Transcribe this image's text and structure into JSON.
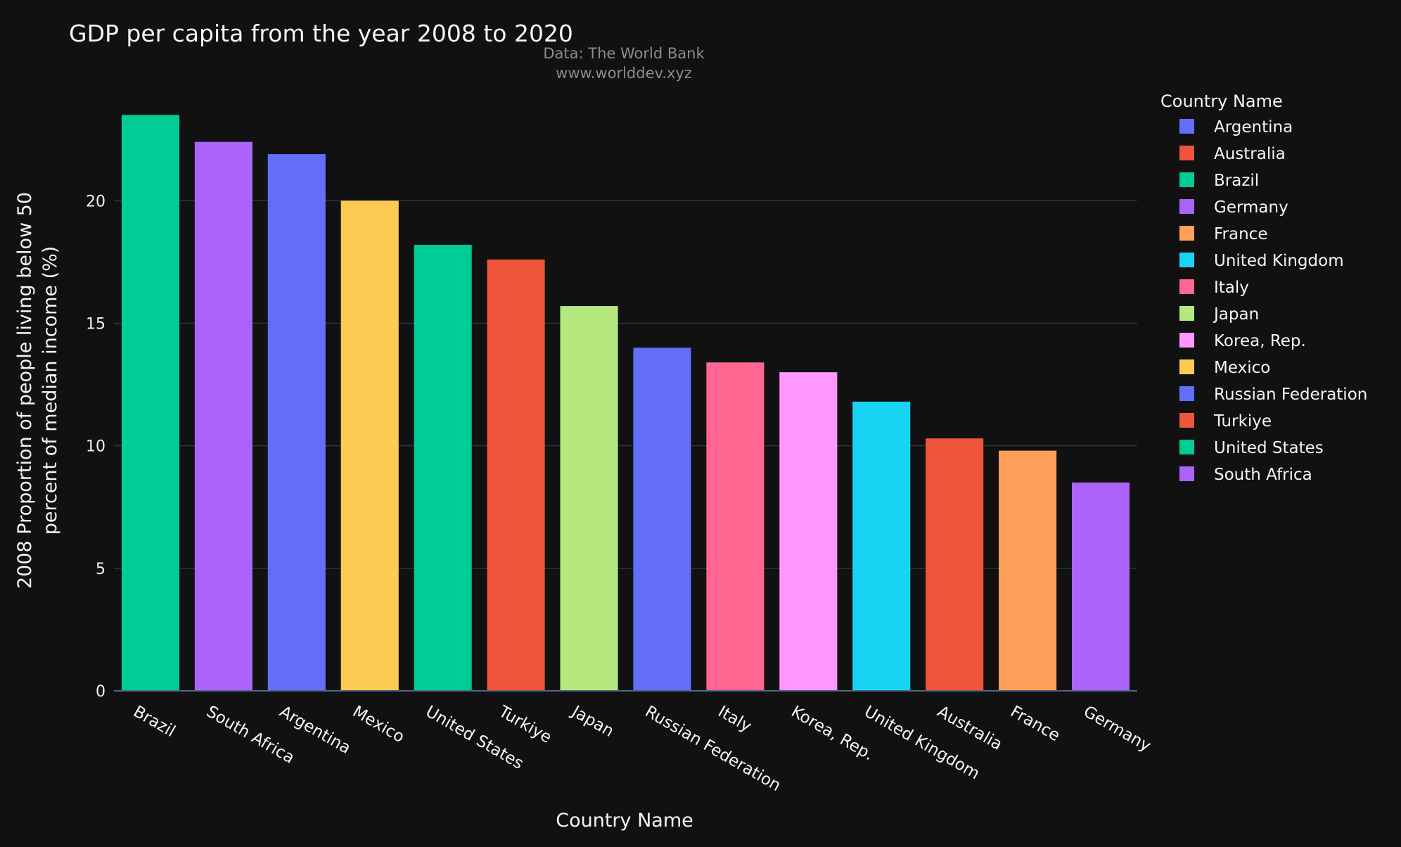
{
  "chart_data": {
    "type": "bar",
    "title": "GDP per capita from the year 2008 to 2020",
    "subtitle_lines": [
      "Data: The World Bank",
      "www.worlddev.xyz"
    ],
    "xlabel": "Country Name",
    "ylabel_lines": [
      "2008 Proportion of people living below 50",
      "percent of median income (%)"
    ],
    "ylim": [
      0,
      24.4
    ],
    "yticks": [
      0,
      5,
      10,
      15,
      20
    ],
    "grid": true,
    "legend_title": "Country Name",
    "legend_position": "right",
    "categories": [
      "Brazil",
      "South Africa",
      "Argentina",
      "Mexico",
      "United States",
      "Turkiye",
      "Japan",
      "Russian Federation",
      "Italy",
      "Korea, Rep.",
      "United Kingdom",
      "Australia",
      "France",
      "Germany"
    ],
    "values": [
      23.5,
      22.4,
      21.9,
      20.0,
      18.2,
      17.6,
      15.7,
      14.0,
      13.4,
      13.0,
      11.8,
      10.3,
      9.8,
      8.5
    ],
    "bar_colors": [
      "#00cc96",
      "#ab63fa",
      "#636efa",
      "#fecb52",
      "#00cc96",
      "#ef553b",
      "#b6e880",
      "#636efa",
      "#ff6692",
      "#ff97ff",
      "#19d3f3",
      "#ef553b",
      "#ffa15a",
      "#ab63fa"
    ],
    "legend": [
      {
        "name": "Argentina",
        "color": "#636efa"
      },
      {
        "name": "Australia",
        "color": "#ef553b"
      },
      {
        "name": "Brazil",
        "color": "#00cc96"
      },
      {
        "name": "Germany",
        "color": "#ab63fa"
      },
      {
        "name": "France",
        "color": "#ffa15a"
      },
      {
        "name": "United Kingdom",
        "color": "#19d3f3"
      },
      {
        "name": "Italy",
        "color": "#ff6692"
      },
      {
        "name": "Japan",
        "color": "#b6e880"
      },
      {
        "name": "Korea, Rep.",
        "color": "#ff97ff"
      },
      {
        "name": "Mexico",
        "color": "#fecb52"
      },
      {
        "name": "Russian Federation",
        "color": "#636efa"
      },
      {
        "name": "Turkiye",
        "color": "#ef553b"
      },
      {
        "name": "United States",
        "color": "#00cc96"
      },
      {
        "name": "South Africa",
        "color": "#ab63fa"
      }
    ],
    "colors": {
      "background": "#111111",
      "grid": "#283442",
      "text": "#f2f5fa",
      "subtitle": "#8c8c8c"
    }
  }
}
